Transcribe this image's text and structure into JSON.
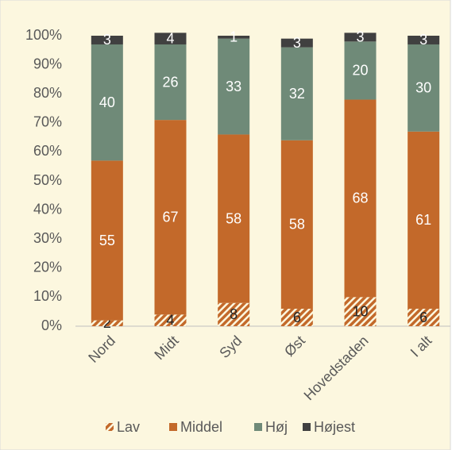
{
  "chart_data": {
    "type": "stacked_bar_percent",
    "categories": [
      "Nord",
      "Midt",
      "Syd",
      "Øst",
      "Hovedstaden",
      "I alt"
    ],
    "series": [
      {
        "name": "Lav",
        "color": "#c3692a",
        "pattern": "hatch",
        "values": [
          2,
          4,
          8,
          6,
          10,
          6
        ]
      },
      {
        "name": "Middel",
        "color": "#c3692a",
        "values": [
          55,
          67,
          58,
          58,
          68,
          61
        ]
      },
      {
        "name": "Høj",
        "color": "#6f8a78",
        "values": [
          40,
          26,
          33,
          32,
          20,
          30
        ]
      },
      {
        "name": "Højest",
        "color": "#404040",
        "values": [
          3,
          4,
          1,
          3,
          3,
          3
        ]
      }
    ],
    "ylim": [
      0,
      100
    ],
    "yticks": [
      {
        "value": 0,
        "label": "0%"
      },
      {
        "value": 10,
        "label": "10%"
      },
      {
        "value": 20,
        "label": "20%"
      },
      {
        "value": 30,
        "label": "30%"
      },
      {
        "value": 40,
        "label": "40%"
      },
      {
        "value": 50,
        "label": "50%"
      },
      {
        "value": 60,
        "label": "60%"
      },
      {
        "value": 70,
        "label": "70%"
      },
      {
        "value": 80,
        "label": "80%"
      },
      {
        "value": 90,
        "label": "90%"
      },
      {
        "value": 100,
        "label": "100%"
      }
    ],
    "grid": false,
    "legend": "bottom"
  }
}
